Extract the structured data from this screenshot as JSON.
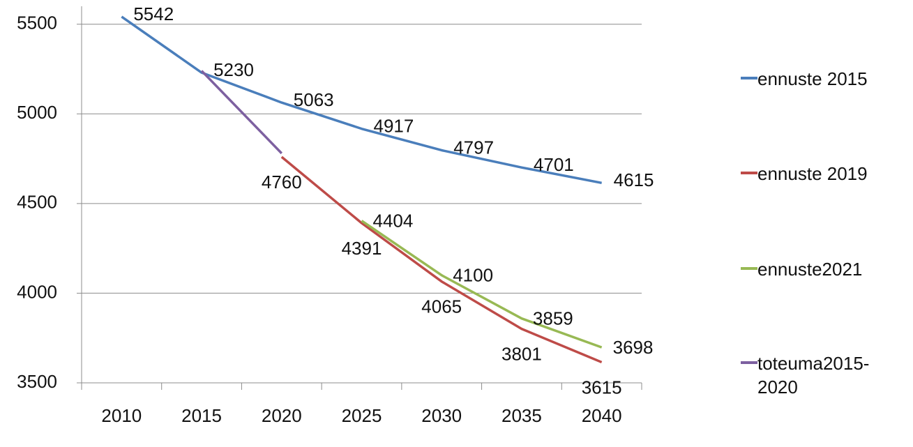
{
  "chart_data": {
    "type": "line",
    "categories": [
      "2010",
      "2015",
      "2020",
      "2025",
      "2030",
      "2035",
      "2040"
    ],
    "series": [
      {
        "name": "ennuste 2015",
        "color": "#4a7ebb",
        "values": [
          5542,
          5230,
          5063,
          4917,
          4797,
          4701,
          4615
        ],
        "data_labels": true
      },
      {
        "name": "ennuste 2019",
        "color": "#be4b48",
        "values": [
          null,
          null,
          4760,
          4391,
          4065,
          3801,
          3615
        ],
        "data_labels": true
      },
      {
        "name": "ennuste2021",
        "color": "#98b954",
        "values": [
          null,
          null,
          null,
          4404,
          4100,
          3859,
          3698
        ],
        "data_labels": true
      },
      {
        "name": "toteuma2015-2020",
        "color": "#7d60a0",
        "values": [
          null,
          5240,
          4780,
          null,
          null,
          null,
          null
        ],
        "data_labels": false
      }
    ],
    "ylim": [
      3500,
      5600
    ],
    "yticks": [
      3500,
      4000,
      4500,
      5000,
      5500
    ],
    "grid": true,
    "legend": "right"
  }
}
